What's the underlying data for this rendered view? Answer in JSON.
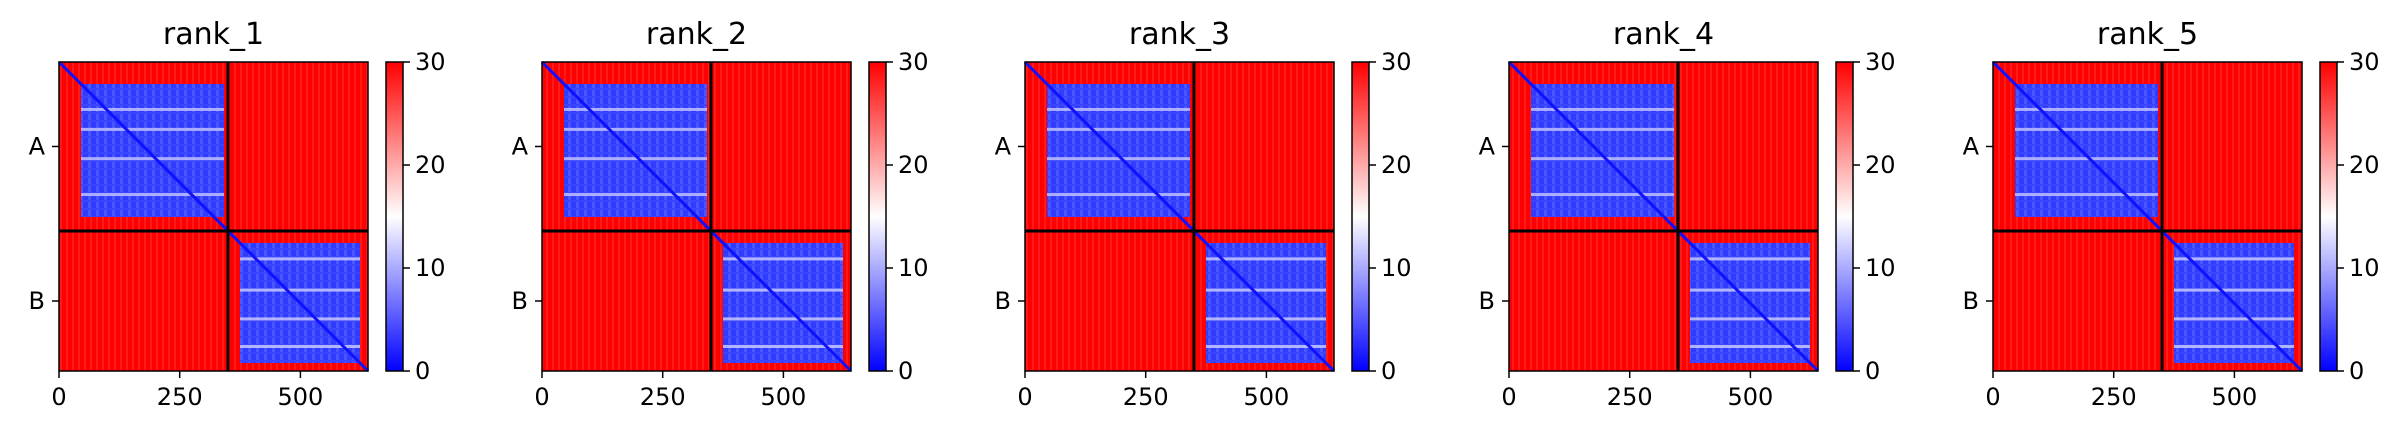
{
  "chart_data": [
    {
      "type": "heatmap",
      "title": "rank_1",
      "xticks": [
        0,
        250,
        500
      ],
      "yticks": [
        "A",
        "B"
      ],
      "chain_boundary": 350,
      "xlim": [
        0,
        640
      ],
      "colorbar": {
        "min": 0,
        "max": 30,
        "ticks": [
          0,
          10,
          20,
          30
        ],
        "colormap": "bwr"
      },
      "colors": {
        "low": "#0000ff",
        "mid": "#ffffff",
        "high": "#ff0000"
      }
    },
    {
      "type": "heatmap",
      "title": "rank_2",
      "xticks": [
        0,
        250,
        500
      ],
      "yticks": [
        "A",
        "B"
      ],
      "chain_boundary": 350,
      "xlim": [
        0,
        640
      ],
      "colorbar": {
        "min": 0,
        "max": 30,
        "ticks": [
          0,
          10,
          20,
          30
        ],
        "colormap": "bwr"
      },
      "colors": {
        "low": "#0000ff",
        "mid": "#ffffff",
        "high": "#ff0000"
      }
    },
    {
      "type": "heatmap",
      "title": "rank_3",
      "xticks": [
        0,
        250,
        500
      ],
      "yticks": [
        "A",
        "B"
      ],
      "chain_boundary": 350,
      "xlim": [
        0,
        640
      ],
      "colorbar": {
        "min": 0,
        "max": 30,
        "ticks": [
          0,
          10,
          20,
          30
        ],
        "colormap": "bwr"
      },
      "colors": {
        "low": "#0000ff",
        "mid": "#ffffff",
        "high": "#ff0000"
      }
    },
    {
      "type": "heatmap",
      "title": "rank_4",
      "xticks": [
        0,
        250,
        500
      ],
      "yticks": [
        "A",
        "B"
      ],
      "chain_boundary": 350,
      "xlim": [
        0,
        640
      ],
      "colorbar": {
        "min": 0,
        "max": 30,
        "ticks": [
          0,
          10,
          20,
          30
        ],
        "colormap": "bwr"
      },
      "colors": {
        "low": "#0000ff",
        "mid": "#ffffff",
        "high": "#ff0000"
      }
    },
    {
      "type": "heatmap",
      "title": "rank_5",
      "xticks": [
        0,
        250,
        500
      ],
      "yticks": [
        "A",
        "B"
      ],
      "chain_boundary": 350,
      "xlim": [
        0,
        640
      ],
      "colorbar": {
        "min": 0,
        "max": 30,
        "ticks": [
          0,
          10,
          20,
          30
        ],
        "colormap": "bwr"
      },
      "colors": {
        "low": "#0000ff",
        "mid": "#ffffff",
        "high": "#ff0000"
      }
    }
  ]
}
